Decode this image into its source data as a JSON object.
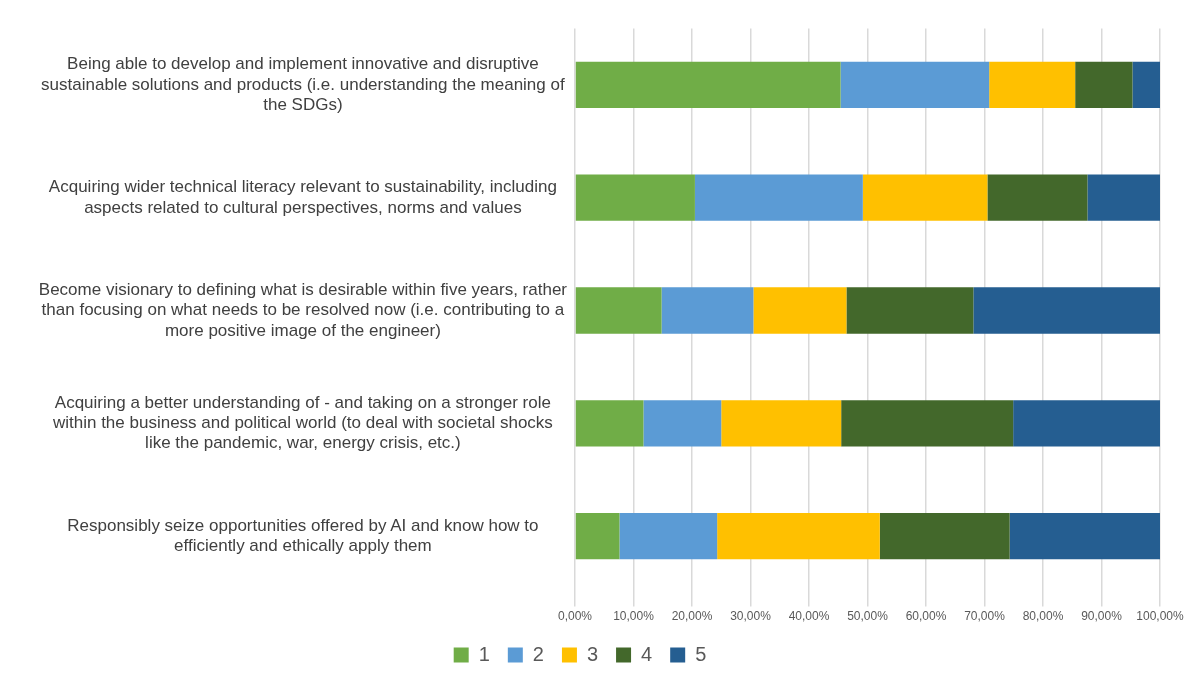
{
  "chart_data": {
    "type": "bar",
    "orientation": "horizontal",
    "stacked": true,
    "categories": [
      "Being able to develop and implement innovative and disruptive sustainable solutions and products (i.e. understanding the meaning of the SDGs)",
      "Acquiring wider technical literacy relevant to sustainability, including aspects related to cultural perspectives, norms and values",
      "Become visionary to defining what is desirable within five years, rather than focusing on what needs to be resolved now (i.e. contributing to a more positive image of the engineer)",
      "Acquiring a better understanding of - and taking on a stronger role within the business and political world (to deal with societal shocks like the pandemic, war, energy crisis, etc.)",
      "Responsibly seize opportunities offered by AI and know how to efficiently and ethically apply them"
    ],
    "series": [
      {
        "name": "1",
        "color": "#70ad47",
        "values": [
          45.4,
          20.5,
          14.8,
          11.7,
          7.6
        ]
      },
      {
        "name": "2",
        "color": "#5b9bd5",
        "values": [
          25.4,
          28.7,
          15.7,
          13.3,
          16.7
        ]
      },
      {
        "name": "3",
        "color": "#ffc000",
        "values": [
          14.7,
          21.3,
          15.9,
          20.5,
          27.8
        ]
      },
      {
        "name": "4",
        "color": "#43682b",
        "values": [
          9.8,
          17.1,
          21.7,
          29.4,
          22.2
        ]
      },
      {
        "name": "5",
        "color": "#255e91",
        "values": [
          4.7,
          12.4,
          31.9,
          25.1,
          25.7
        ]
      }
    ],
    "xlim": [
      0,
      100
    ],
    "xticks": [
      {
        "value": 0,
        "label": "0,00%"
      },
      {
        "value": 10,
        "label": "10,00%"
      },
      {
        "value": 20,
        "label": "20,00%"
      },
      {
        "value": 30,
        "label": "30,00%"
      },
      {
        "value": 40,
        "label": "40,00%"
      },
      {
        "value": 50,
        "label": "50,00%"
      },
      {
        "value": 60,
        "label": "60,00%"
      },
      {
        "value": 70,
        "label": "70,00%"
      },
      {
        "value": 80,
        "label": "80,00%"
      },
      {
        "value": 90,
        "label": "90,00%"
      },
      {
        "value": 100,
        "label": "100,00%"
      }
    ],
    "grid": "x",
    "legend": "bottom"
  }
}
